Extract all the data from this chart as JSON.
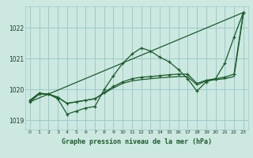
{
  "title": "Graphe pression niveau de la mer (hPa)",
  "bg_color": "#cce8e0",
  "grid_color": "#99cccc",
  "line_color": "#1a5c2a",
  "xlim": [
    -0.5,
    23.5
  ],
  "ylim": [
    1018.7,
    1022.7
  ],
  "yticks": [
    1019,
    1020,
    1021,
    1022
  ],
  "xticks": [
    0,
    1,
    2,
    3,
    4,
    5,
    6,
    7,
    8,
    9,
    10,
    11,
    12,
    13,
    14,
    15,
    16,
    17,
    18,
    19,
    20,
    21,
    22,
    23
  ],
  "trend_line": {
    "x": [
      0,
      23
    ],
    "y": [
      1019.6,
      1022.5
    ]
  },
  "series_main": {
    "x": [
      0,
      1,
      2,
      3,
      4,
      5,
      6,
      7,
      8,
      9,
      10,
      11,
      12,
      13,
      14,
      15,
      16,
      17,
      18,
      19,
      20,
      21,
      22,
      23
    ],
    "y": [
      1019.6,
      1019.85,
      1019.85,
      1019.7,
      1019.2,
      1019.3,
      1019.4,
      1019.45,
      1020.0,
      1020.45,
      1020.85,
      1021.15,
      1021.35,
      1021.25,
      1021.05,
      1020.9,
      1020.65,
      1020.35,
      1019.95,
      1020.25,
      1020.35,
      1020.85,
      1021.7,
      1022.5
    ]
  },
  "series_smooth": {
    "x": [
      0,
      1,
      2,
      3,
      4,
      5,
      6,
      7,
      8,
      9,
      10,
      11,
      12,
      13,
      14,
      15,
      16,
      17,
      18,
      19,
      20,
      21,
      22,
      23
    ],
    "y": [
      1019.65,
      1019.88,
      1019.85,
      1019.75,
      1019.55,
      1019.6,
      1019.65,
      1019.7,
      1019.9,
      1020.1,
      1020.25,
      1020.35,
      1020.4,
      1020.42,
      1020.45,
      1020.48,
      1020.5,
      1020.5,
      1020.2,
      1020.3,
      1020.35,
      1020.4,
      1020.5,
      1022.5
    ]
  },
  "series_flat": {
    "x": [
      0,
      1,
      2,
      3,
      4,
      5,
      6,
      7,
      8,
      9,
      10,
      11,
      12,
      13,
      14,
      15,
      16,
      17,
      18,
      19,
      20,
      21,
      22,
      23
    ],
    "y": [
      1019.65,
      1019.88,
      1019.85,
      1019.75,
      1019.55,
      1019.6,
      1019.65,
      1019.7,
      1019.88,
      1020.05,
      1020.2,
      1020.28,
      1020.32,
      1020.35,
      1020.38,
      1020.4,
      1020.42,
      1020.42,
      1020.15,
      1020.28,
      1020.32,
      1020.35,
      1020.42,
      1022.45
    ]
  }
}
